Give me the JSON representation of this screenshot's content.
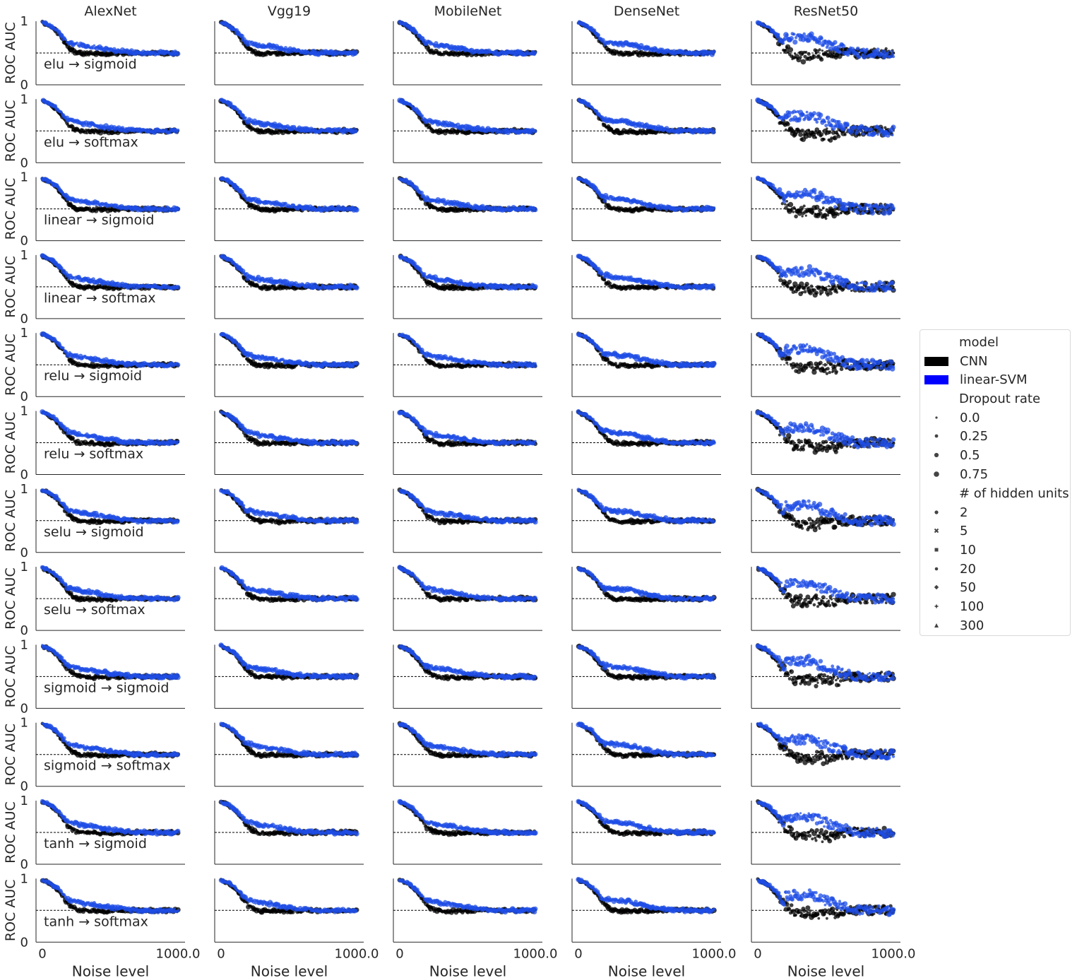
{
  "chart_data": {
    "type": "scatter",
    "columns": [
      "AlexNet",
      "Vgg19",
      "MobileNet",
      "DenseNet",
      "ResNet50"
    ],
    "rows": [
      "elu → sigmoid",
      "elu → softmax",
      "linear → sigmoid",
      "linear → softmax",
      "relu → sigmoid",
      "relu → softmax",
      "selu → sigmoid",
      "selu → softmax",
      "sigmoid → sigmoid",
      "sigmoid → softmax",
      "tanh → sigmoid",
      "tanh → softmax"
    ],
    "xlabel": "Noise level",
    "ylabel": "ROC AUC",
    "xlim": [
      0,
      1000
    ],
    "ylim": [
      0,
      1
    ],
    "xticks": [
      {
        "value": 0,
        "label": "0"
      },
      {
        "value": 1000,
        "label": "1000.0"
      }
    ],
    "yticks": [
      {
        "value": 0,
        "label": "0"
      },
      {
        "value": 1,
        "label": "1"
      }
    ],
    "reference_line": {
      "y": 0.5,
      "style": "dashed"
    },
    "grid": false,
    "legend_position": "right",
    "legend": {
      "model_title": "model",
      "models": [
        {
          "name": "CNN",
          "color": "#000000"
        },
        {
          "name": "linear-SVM",
          "color": "#0000ff"
        }
      ],
      "dropout_title": "Dropout rate",
      "dropout_rates": [
        "0.0",
        "0.25",
        "0.5",
        "0.75"
      ],
      "hidden_title": "# of hidden units",
      "hidden_units": [
        "2",
        "5",
        "10",
        "20",
        "50",
        "100",
        "300"
      ]
    },
    "series": [
      {
        "name": "CNN",
        "color": "#000000",
        "noise_level": [
          0,
          50,
          100,
          150,
          200,
          250,
          300,
          400,
          500,
          600,
          700,
          800,
          900,
          1000
        ],
        "roc_auc": [
          0.98,
          0.93,
          0.85,
          0.72,
          0.58,
          0.51,
          0.49,
          0.49,
          0.49,
          0.5,
          0.5,
          0.5,
          0.5,
          0.5
        ]
      },
      {
        "name": "linear-SVM",
        "color": "#1f4ee6",
        "noise_level": [
          0,
          50,
          100,
          150,
          200,
          250,
          300,
          400,
          500,
          600,
          700,
          800,
          900,
          1000
        ],
        "roc_auc": [
          0.98,
          0.94,
          0.87,
          0.76,
          0.64,
          0.6,
          0.57,
          0.53,
          0.51,
          0.5,
          0.5,
          0.5,
          0.5,
          0.5
        ]
      }
    ]
  }
}
